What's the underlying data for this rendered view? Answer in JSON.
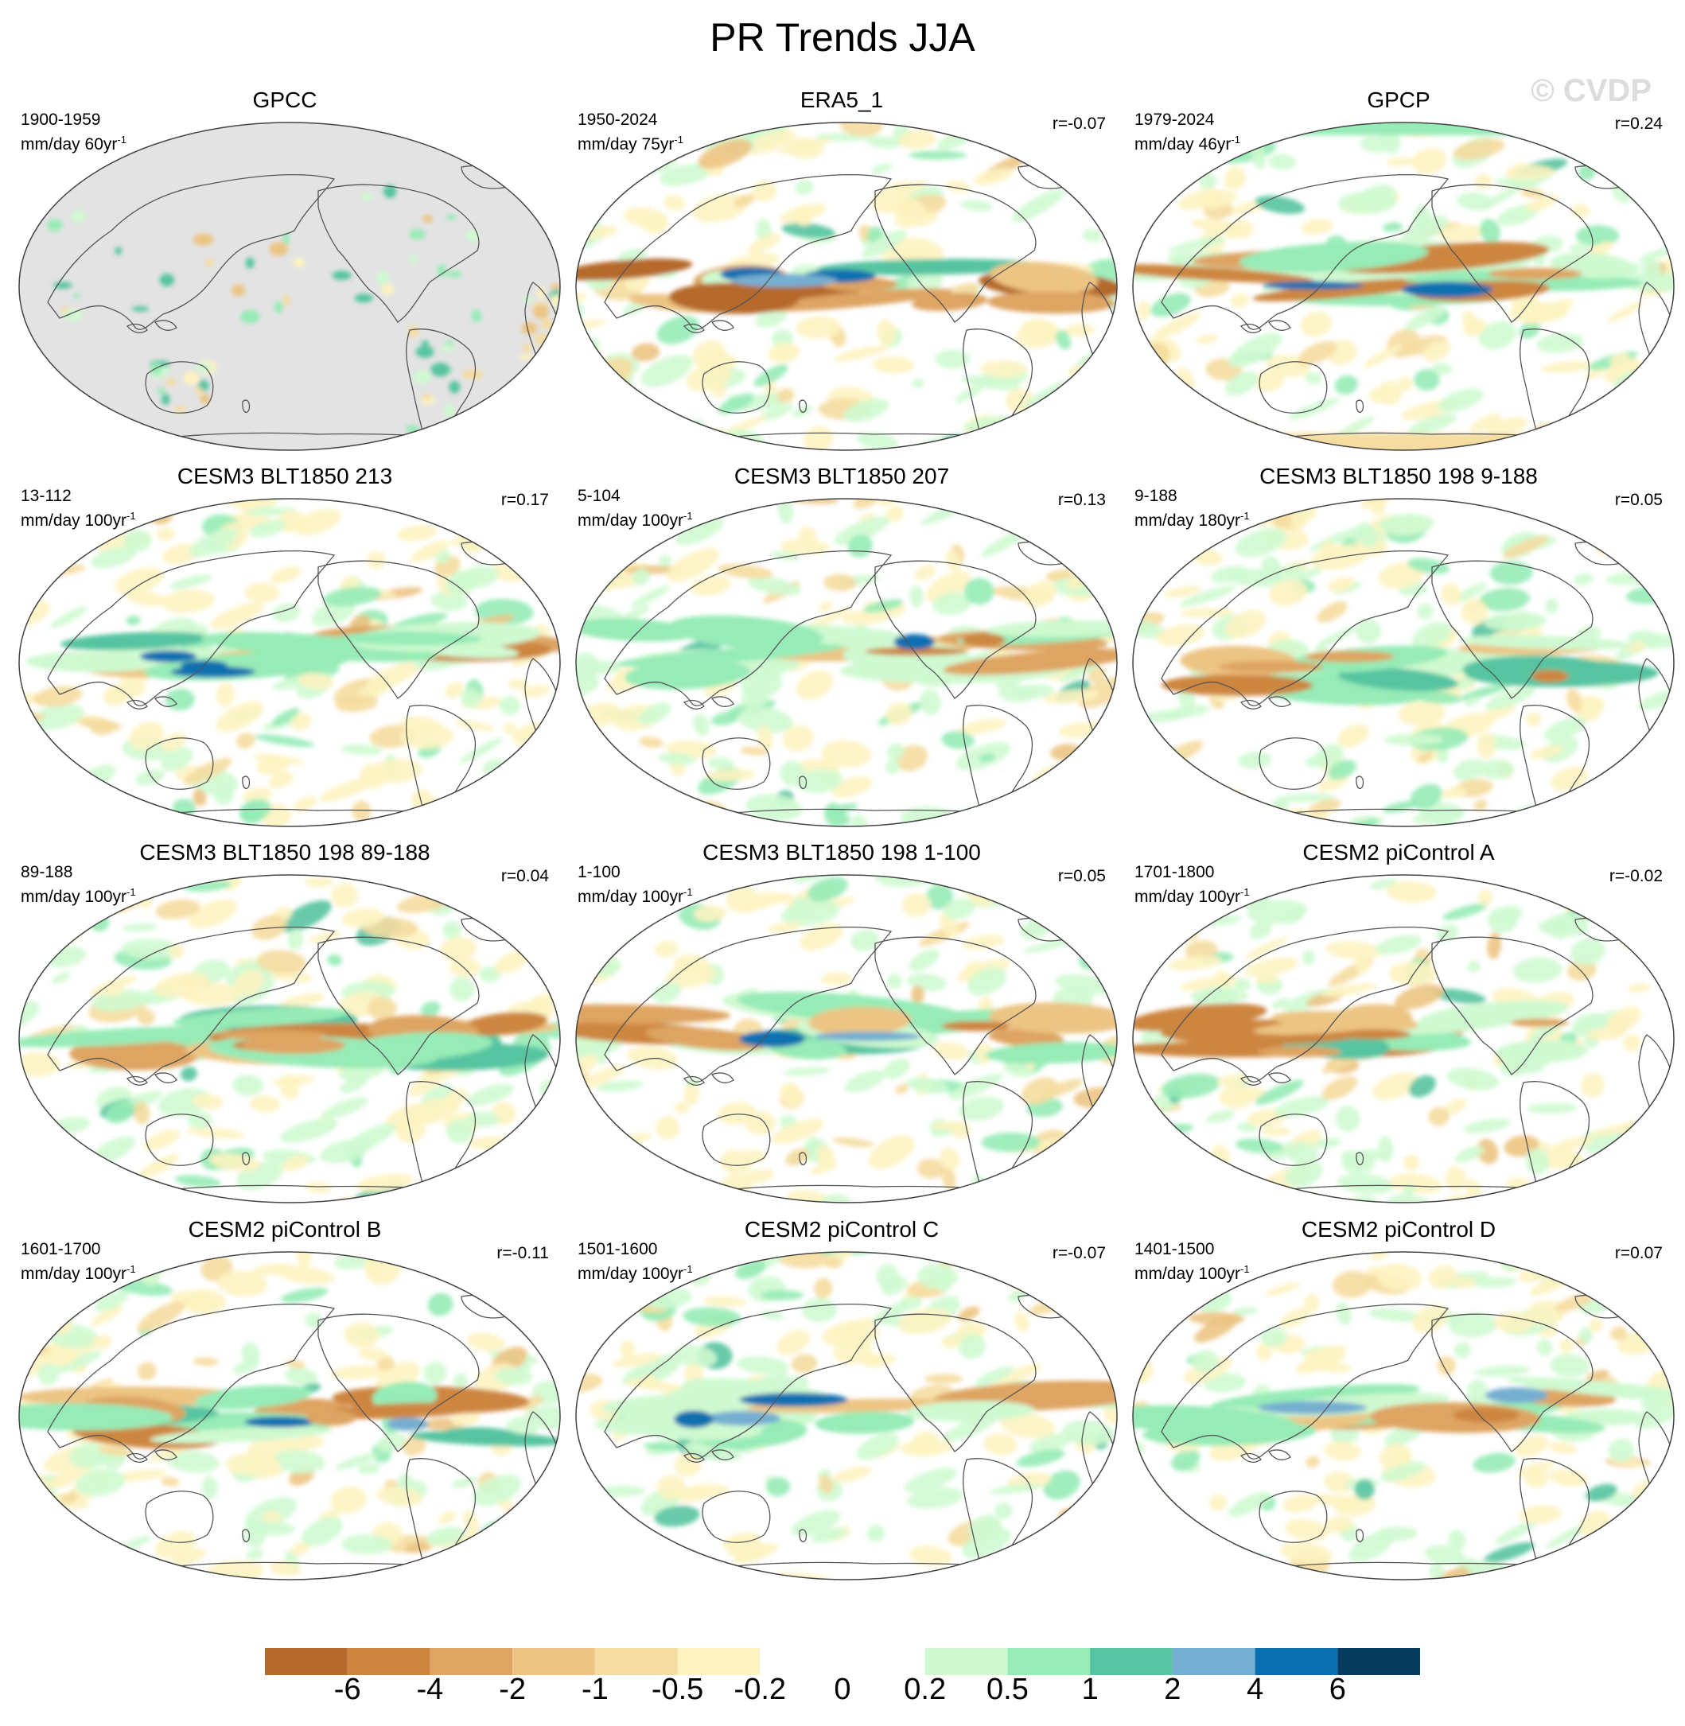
{
  "title": "PR Trends JJA",
  "watermark": "© CVDP",
  "chart_data": {
    "type": "heatmap",
    "title": "PR Trends JJA",
    "projection": "Robinson, Pacific-centered global maps",
    "legend_placement": "bottom",
    "colorbar": {
      "labels": [
        "-6",
        "-4",
        "-2",
        "-1",
        "-0.5",
        "-0.2",
        "0",
        "0.2",
        "0.5",
        "1",
        "2",
        "4",
        "6"
      ],
      "levels": [
        -6,
        -4,
        -2,
        -1,
        -0.5,
        -0.2,
        0,
        0.2,
        0.5,
        1,
        2,
        4,
        6
      ],
      "colors": [
        "#b5692a",
        "#cd8640",
        "#dea462",
        "#ecc483",
        "#f5dca0",
        "#fdf3c1",
        "#ffffff",
        "#ffffff",
        "#cff9d0",
        "#96ebb6",
        "#56c4a1",
        "#74aed0",
        "#0a6fb1",
        "#073b5d"
      ]
    },
    "panels": [
      {
        "title": "GPCC",
        "period": "1900-1959",
        "units": "mm/day 60yr",
        "r": "",
        "masked_ocean": true,
        "pattern": "gpcc"
      },
      {
        "title": "ERA5_1",
        "period": "1950-2024",
        "units": "mm/day 75yr",
        "r": "r=-0.07",
        "masked_ocean": false,
        "pattern": "era5"
      },
      {
        "title": "GPCP",
        "period": "1979-2024",
        "units": "mm/day 46yr",
        "r": "r=0.24",
        "masked_ocean": false,
        "pattern": "gpcp"
      },
      {
        "title": "CESM3 BLT1850 213",
        "period": "13-112",
        "units": "mm/day 100yr",
        "r": "r=0.17",
        "masked_ocean": false,
        "pattern": "a"
      },
      {
        "title": "CESM3 BLT1850 207",
        "period": "5-104",
        "units": "mm/day 100yr",
        "r": "r=0.13",
        "masked_ocean": false,
        "pattern": "b"
      },
      {
        "title": "CESM3 BLT1850 198 9-188",
        "period": "9-188",
        "units": "mm/day 180yr",
        "r": "r=0.05",
        "masked_ocean": false,
        "pattern": "c"
      },
      {
        "title": "CESM3 BLT1850 198 89-188",
        "period": "89-188",
        "units": "mm/day 100yr",
        "r": "r=0.04",
        "masked_ocean": false,
        "pattern": "d"
      },
      {
        "title": "CESM3 BLT1850 198 1-100",
        "period": "1-100",
        "units": "mm/day 100yr",
        "r": "r=0.05",
        "masked_ocean": false,
        "pattern": "e"
      },
      {
        "title": "CESM2 piControl A",
        "period": "1701-1800",
        "units": "mm/day 100yr",
        "r": "r=-0.02",
        "masked_ocean": false,
        "pattern": "f"
      },
      {
        "title": "CESM2 piControl B",
        "period": "1601-1700",
        "units": "mm/day 100yr",
        "r": "r=-0.11",
        "masked_ocean": false,
        "pattern": "g"
      },
      {
        "title": "CESM2 piControl C",
        "period": "1501-1600",
        "units": "mm/day 100yr",
        "r": "r=-0.07",
        "masked_ocean": false,
        "pattern": "h"
      },
      {
        "title": "CESM2 piControl D",
        "period": "1401-1500",
        "units": "mm/day 100yr",
        "r": "r=0.07",
        "masked_ocean": false,
        "pattern": "i"
      }
    ]
  }
}
